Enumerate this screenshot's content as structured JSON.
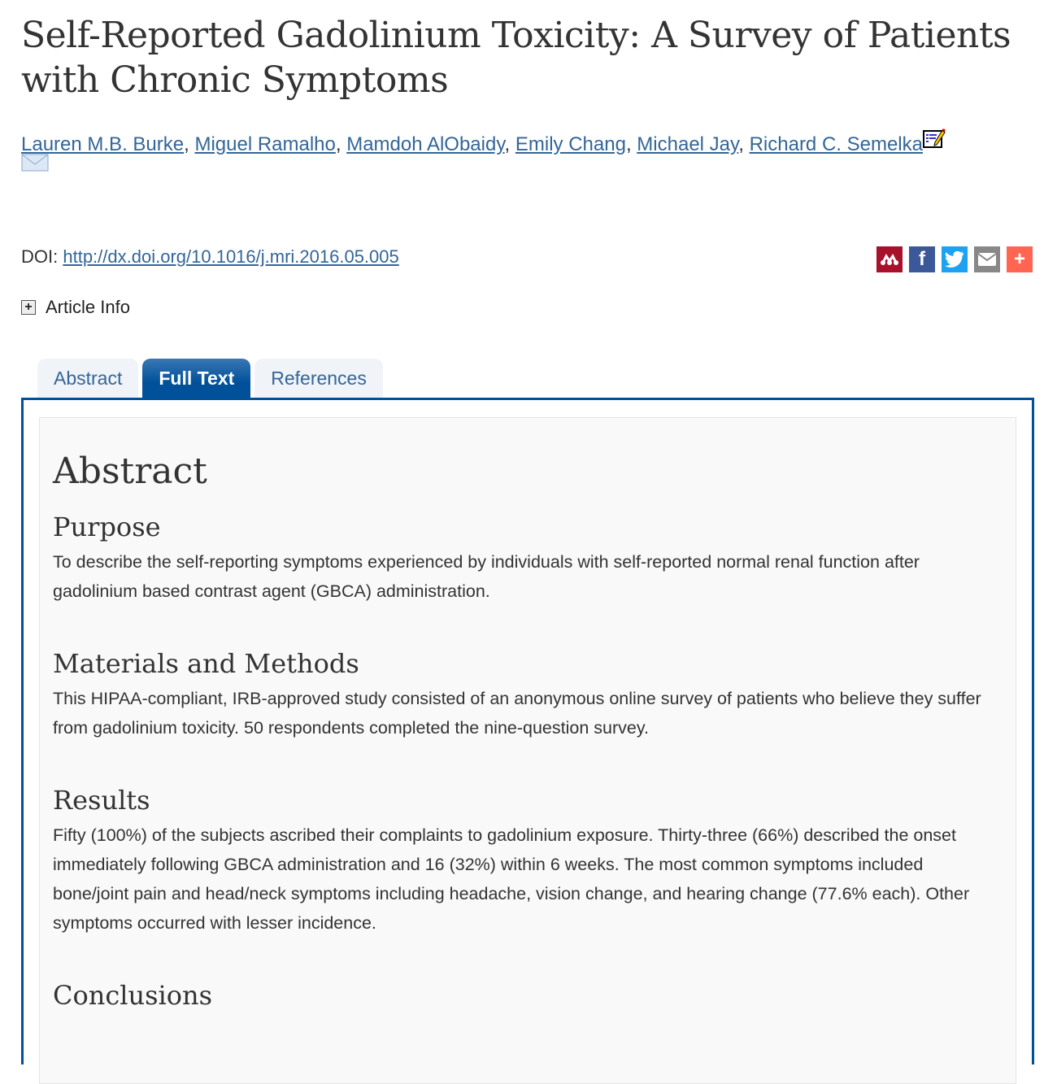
{
  "title": "Self-Reported Gadolinium Toxicity: A Survey of Patients with Chronic Symptoms",
  "authors": [
    "Lauren M.B. Burke",
    "Miguel Ramalho",
    "Mamdoh AlObaidy",
    "Emily Chang",
    "Michael Jay",
    "Richard C. Semelka"
  ],
  "doi": {
    "label": "DOI:",
    "link": "http://dx.doi.org/10.1016/j.mri.2016.05.005"
  },
  "share": [
    {
      "icon": "mendeley-icon",
      "color": "#a8112b"
    },
    {
      "icon": "facebook-icon",
      "color": "#3b5998"
    },
    {
      "icon": "twitter-icon",
      "color": "#1da1f2"
    },
    {
      "icon": "email-icon",
      "color": "#888888"
    },
    {
      "icon": "plus-icon",
      "color": "#ff6550"
    }
  ],
  "article_info": "Article Info",
  "tabs": [
    {
      "label": "Abstract"
    },
    {
      "label": "Full Text",
      "active": true
    },
    {
      "label": "References"
    }
  ],
  "abstract": {
    "heading": "Abstract",
    "sections": [
      {
        "heading": "Purpose",
        "text": "To describe the self-reporting symptoms experienced by individuals with self-reported normal renal function after gadolinium based contrast agent (GBCA) administration."
      },
      {
        "heading": "Materials and Methods",
        "text": "This HIPAA-compliant, IRB-approved study consisted of an anonymous online survey of patients who believe they suffer from gadolinium toxicity. 50 respondents completed the nine-question survey."
      },
      {
        "heading": "Results",
        "text": "Fifty (100%) of the subjects ascribed their complaints to gadolinium exposure. Thirty-three (66%) described the onset immediately following GBCA administration and 16 (32%) within 6 weeks. The most common symptoms included bone/joint pain and head/neck symptoms including headache, vision change, and hearing change (77.6% each). Other symptoms occurred with lesser incidence."
      },
      {
        "heading": "Conclusions",
        "text": ""
      }
    ]
  },
  "colors": {
    "link": "#336699",
    "tab_active": "#00519a"
  }
}
